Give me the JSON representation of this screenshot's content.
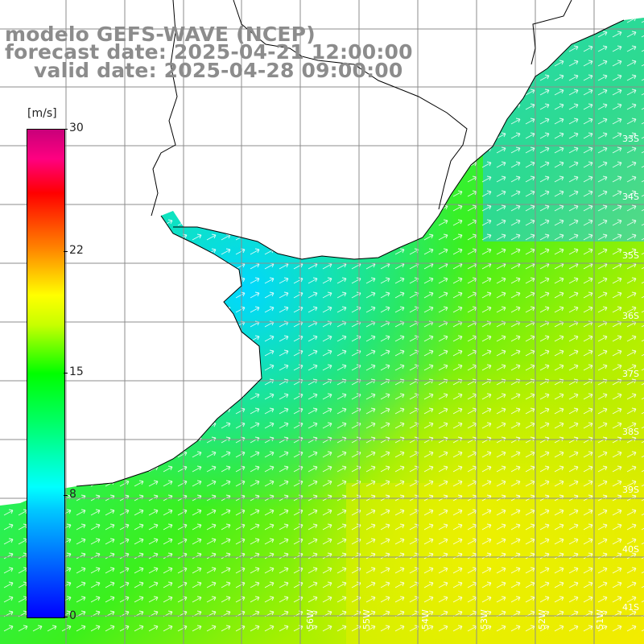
{
  "title": {
    "line1": "modelo GEFS-WAVE (NCEP)",
    "line2": "forecast date: 2025-04-21 12:00:00",
    "line3": "valid date: 2025-04-28 09:00:00"
  },
  "colorbar": {
    "unit": "[m/s]",
    "ticks": [
      "30",
      "22",
      "15",
      "8",
      "0"
    ],
    "colors": [
      "#0000ff",
      "#00c8ff",
      "#00ffff",
      "#00ff00",
      "#ffff00",
      "#ff8000",
      "#ff0000",
      "#c8007a"
    ]
  },
  "latitude_labels": [
    "33S",
    "34S",
    "35S",
    "36S",
    "37S",
    "38S",
    "39S",
    "40S",
    "41S"
  ],
  "longitude_labels": [
    "56W",
    "55W",
    "54W",
    "53W",
    "52W",
    "51W"
  ],
  "map": {
    "land_color": "#ffffff",
    "grid_color": "#8c8c8c",
    "coastline_color": "#000000",
    "arrow_color": "#ffffff",
    "wind_direction": "toward northeast"
  }
}
